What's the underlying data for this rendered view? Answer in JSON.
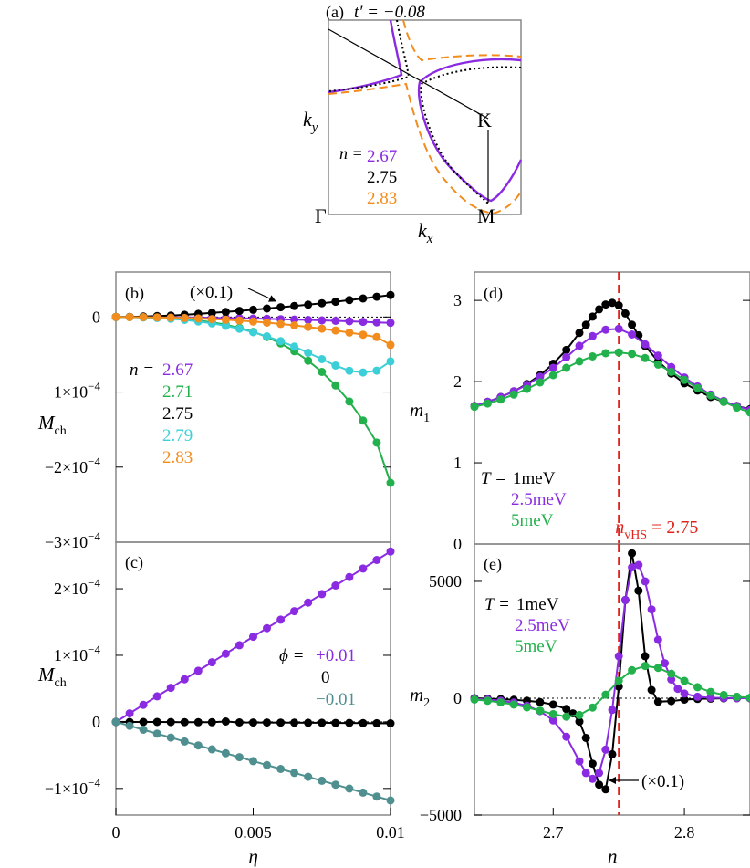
{
  "colors": {
    "purple": "#8a2be2",
    "green": "#22b14c",
    "black": "#000000",
    "cyan": "#3ccfd8",
    "orange": "#f28c1c",
    "teal": "#4f8f90",
    "red": "#e0241b",
    "frame": "#888888"
  },
  "chart_data": [
    {
      "id": "a",
      "type": "diagram",
      "panel_label": "(a)",
      "title": "t′ = −0.08",
      "xlabel": "k",
      "xlabel_sub": "x",
      "ylabel": "k",
      "ylabel_sub": "y",
      "points": {
        "gamma": "Γ",
        "K": "K",
        "M": "M"
      },
      "legend_prefix": "n =",
      "series": [
        {
          "name": "2.67",
          "color": "purple",
          "style": "solid"
        },
        {
          "name": "2.75",
          "color": "black",
          "style": "dotted"
        },
        {
          "name": "2.83",
          "color": "orange",
          "style": "dashed"
        }
      ]
    },
    {
      "id": "b",
      "type": "line",
      "panel_label": "(b)",
      "ylabel": "M",
      "ylabel_sub": "ch",
      "xlim": [
        0,
        0.01
      ],
      "ylim": [
        -0.0003,
        6e-05
      ],
      "yticks": [
        {
          "v": 0,
          "label": "0"
        },
        {
          "v": -0.0001,
          "label": "−1×10",
          "sup": "−4"
        },
        {
          "v": -0.0002,
          "label": "−2×10",
          "sup": "−4"
        },
        {
          "v": -0.0003,
          "label": "−3×10",
          "sup": "−4"
        }
      ],
      "annotation": "(×0.1)",
      "legend_prefix": "n =",
      "x": [
        0,
        0.0005,
        0.001,
        0.0015,
        0.002,
        0.0025,
        0.003,
        0.0035,
        0.004,
        0.0045,
        0.005,
        0.0055,
        0.006,
        0.0065,
        0.007,
        0.0075,
        0.008,
        0.0085,
        0.009,
        0.0095,
        0.01
      ],
      "series": [
        {
          "name": "2.67",
          "color": "purple",
          "values": [
            0,
            0,
            -1e-07,
            -2e-07,
            -3e-07,
            -5e-07,
            -7e-07,
            -1e-06,
            -1.3e-06,
            -1.6e-06,
            -2e-06,
            -2.4e-06,
            -2.9e-06,
            -3.4e-06,
            -3.9e-06,
            -4.5e-06,
            -5.1e-06,
            -5.7e-06,
            -6.4e-06,
            -7.1e-06,
            -7.8e-06
          ]
        },
        {
          "name": "2.71",
          "color": "green",
          "values": [
            0,
            -1e-07,
            -4e-07,
            -9e-07,
            -1.7e-06,
            -2.9e-06,
            -4.6e-06,
            -7e-06,
            -1.02e-05,
            -1.44e-05,
            -1.98e-05,
            -2.66e-05,
            -3.52e-05,
            -4.56e-05,
            -5.82e-05,
            -7.32e-05,
            -9.12e-05,
            -0.0001126,
            -0.000138,
            -0.0001673,
            -0.000221
          ]
        },
        {
          "name": "2.75",
          "color": "black",
          "values": [
            0,
            2e-07,
            6e-07,
            1.2e-06,
            2e-06,
            3e-06,
            4.2e-06,
            5.5e-06,
            6.8e-06,
            8.2e-06,
            9.7e-06,
            1.13e-05,
            1.3e-05,
            1.47e-05,
            1.65e-05,
            1.84e-05,
            2.04e-05,
            2.25e-05,
            2.47e-05,
            2.7e-05,
            2.93e-05
          ]
        },
        {
          "name": "2.79",
          "color": "cyan",
          "values": [
            0,
            -2e-07,
            -6e-07,
            -1.3e-06,
            -2.4e-06,
            -3.9e-06,
            -5.9e-06,
            -8.5e-06,
            -1.17e-05,
            -1.56e-05,
            -2.03e-05,
            -2.58e-05,
            -3.22e-05,
            -3.95e-05,
            -4.76e-05,
            -5.62e-05,
            -6.47e-05,
            -7.16e-05,
            -7.39e-05,
            -7.15e-05,
            -5.91e-05
          ]
        },
        {
          "name": "2.83",
          "color": "orange",
          "values": [
            0,
            -1e-07,
            -2e-07,
            -5e-07,
            -8e-07,
            -1.3e-06,
            -1.9e-06,
            -2.7e-06,
            -3.6e-06,
            -4.7e-06,
            -6e-06,
            -7.5e-06,
            -9.2e-06,
            -1.11e-05,
            -1.32e-05,
            -1.55e-05,
            -1.8e-05,
            -2.07e-05,
            -2.36e-05,
            -2.67e-05,
            -3.72e-05
          ]
        }
      ]
    },
    {
      "id": "c",
      "type": "line",
      "panel_label": "(c)",
      "xlabel": "η",
      "ylabel": "M",
      "ylabel_sub": "ch",
      "xlim": [
        0,
        0.01
      ],
      "ylim": [
        -0.00014,
        0.00027
      ],
      "xticks": [
        {
          "v": 0,
          "label": "0"
        },
        {
          "v": 0.005,
          "label": "0.005"
        },
        {
          "v": 0.01,
          "label": "0.01"
        }
      ],
      "yticks": [
        {
          "v": 0.0002,
          "label": "2×10",
          "sup": "−4"
        },
        {
          "v": 0.0001,
          "label": "1×10",
          "sup": "−4"
        },
        {
          "v": 0,
          "label": "0"
        },
        {
          "v": -0.0001,
          "label": "−1×10",
          "sup": "−4"
        }
      ],
      "legend_prefix": "ϕ =",
      "x": [
        0,
        0.0005,
        0.001,
        0.0015,
        0.002,
        0.0025,
        0.003,
        0.0035,
        0.004,
        0.0045,
        0.005,
        0.0055,
        0.006,
        0.0065,
        0.007,
        0.0075,
        0.008,
        0.0085,
        0.009,
        0.0095,
        0.01
      ],
      "series": [
        {
          "name": "+0.01",
          "color": "purple",
          "values": [
            0,
            1.28e-05,
            2.56e-05,
            3.84e-05,
            5.12e-05,
            6.4e-05,
            7.68e-05,
            8.96e-05,
            0.0001024,
            0.0001152,
            0.000128,
            0.0001408,
            0.0001536,
            0.0001664,
            0.0001792,
            0.000192,
            0.0002048,
            0.0002176,
            0.0002304,
            0.0002432,
            0.000256
          ]
        },
        {
          "name": "0",
          "color": "black",
          "values": [
            0,
            -1e-07,
            -2e-07,
            -2e-07,
            -3e-07,
            -4e-07,
            -5e-07,
            -6e-07,
            5e-07,
            -8e-07,
            -9e-07,
            -1e-06,
            -1.1e-06,
            -1.2e-06,
            -1.3e-06,
            -1.4e-06,
            -1.6e-06,
            -1.7e-06,
            -1.9e-06,
            -2e-06,
            -2.2e-06
          ]
        },
        {
          "name": "−0.01",
          "color": "teal",
          "values": [
            0,
            -5.9e-06,
            -1.18e-05,
            -1.77e-05,
            -2.36e-05,
            -2.95e-05,
            -3.54e-05,
            -4.13e-05,
            -4.72e-05,
            -5.31e-05,
            -5.9e-05,
            -6.49e-05,
            -7.08e-05,
            -7.67e-05,
            -8.26e-05,
            -8.85e-05,
            -9.44e-05,
            -0.0001003,
            -0.0001062,
            -0.0001121,
            -0.000118
          ]
        }
      ]
    },
    {
      "id": "d",
      "type": "line",
      "panel_label": "(d)",
      "ylabel": "m",
      "ylabel_sub": "1",
      "xlim": [
        2.64,
        2.85
      ],
      "ylim": [
        0,
        3.35
      ],
      "yticks": [
        {
          "v": 0,
          "label": "0"
        },
        {
          "v": 1,
          "label": "1"
        },
        {
          "v": 2,
          "label": "2"
        },
        {
          "v": 3,
          "label": "3"
        }
      ],
      "vline": {
        "x": 2.75,
        "label": "n",
        "label_sub": "vHS",
        "label_tail": " = 2.75"
      },
      "legend_prefix": "T =",
      "series": [
        {
          "name": "1meV",
          "color": "black",
          "x": [
            2.64,
            2.65,
            2.66,
            2.67,
            2.68,
            2.69,
            2.7,
            2.71,
            2.72,
            2.725,
            2.73,
            2.735,
            2.74,
            2.745,
            2.75,
            2.755,
            2.76,
            2.765,
            2.77,
            2.78,
            2.79,
            2.8,
            2.81,
            2.82,
            2.83,
            2.84,
            2.85
          ],
          "values": [
            1.7,
            1.75,
            1.81,
            1.88,
            1.97,
            2.08,
            2.22,
            2.39,
            2.6,
            2.7,
            2.8,
            2.89,
            2.95,
            2.97,
            2.94,
            2.84,
            2.7,
            2.57,
            2.44,
            2.25,
            2.1,
            1.98,
            1.89,
            1.81,
            1.75,
            1.7,
            1.66
          ]
        },
        {
          "name": "2.5meV",
          "color": "purple",
          "x": [
            2.64,
            2.65,
            2.66,
            2.67,
            2.68,
            2.69,
            2.7,
            2.71,
            2.72,
            2.73,
            2.74,
            2.75,
            2.76,
            2.77,
            2.78,
            2.79,
            2.8,
            2.81,
            2.82,
            2.83,
            2.84,
            2.85
          ],
          "values": [
            1.7,
            1.75,
            1.81,
            1.88,
            1.96,
            2.06,
            2.17,
            2.3,
            2.44,
            2.56,
            2.64,
            2.65,
            2.58,
            2.46,
            2.32,
            2.18,
            2.05,
            1.94,
            1.84,
            1.76,
            1.7,
            1.65
          ]
        },
        {
          "name": "5meV",
          "color": "green",
          "x": [
            2.64,
            2.65,
            2.66,
            2.67,
            2.68,
            2.69,
            2.7,
            2.71,
            2.72,
            2.73,
            2.74,
            2.75,
            2.76,
            2.77,
            2.78,
            2.79,
            2.8,
            2.81,
            2.82,
            2.83,
            2.84,
            2.85
          ],
          "values": [
            1.69,
            1.73,
            1.78,
            1.84,
            1.91,
            1.99,
            2.08,
            2.17,
            2.25,
            2.31,
            2.35,
            2.36,
            2.34,
            2.29,
            2.21,
            2.12,
            2.02,
            1.92,
            1.83,
            1.75,
            1.68,
            1.62
          ]
        }
      ]
    },
    {
      "id": "e",
      "type": "line",
      "panel_label": "(e)",
      "xlabel": "n",
      "ylabel": "m",
      "ylabel_sub": "2",
      "xlim": [
        2.64,
        2.85
      ],
      "ylim": [
        -5000,
        6600
      ],
      "xticks": [
        {
          "v": 2.7,
          "label": "2.7"
        },
        {
          "v": 2.8,
          "label": "2.8"
        }
      ],
      "yticks": [
        {
          "v": -5000,
          "label": "−5000"
        },
        {
          "v": 0,
          "label": "0"
        },
        {
          "v": 5000,
          "label": "5000"
        }
      ],
      "vline": {
        "x": 2.75
      },
      "annotation": "(×0.1)",
      "legend_prefix": "T =",
      "series": [
        {
          "name": "1meV",
          "color": "black",
          "x": [
            2.64,
            2.65,
            2.66,
            2.67,
            2.68,
            2.69,
            2.7,
            2.71,
            2.715,
            2.72,
            2.725,
            2.73,
            2.735,
            2.74,
            2.745,
            2.75,
            2.755,
            2.76,
            2.765,
            2.77,
            2.775,
            2.78,
            2.79,
            2.8,
            2.81,
            2.82,
            2.83,
            2.84,
            2.85
          ],
          "values": [
            0,
            -20,
            -40,
            -70,
            -110,
            -170,
            -270,
            -460,
            -650,
            -1000,
            -1700,
            -2800,
            -3700,
            -3900,
            -2400,
            500,
            4200,
            6200,
            4600,
            1800,
            350,
            -150,
            -120,
            -60,
            -30,
            -15,
            -5,
            0,
            0
          ]
        },
        {
          "name": "2.5meV",
          "color": "purple",
          "x": [
            2.64,
            2.65,
            2.66,
            2.67,
            2.68,
            2.69,
            2.7,
            2.71,
            2.72,
            2.725,
            2.73,
            2.735,
            2.74,
            2.745,
            2.75,
            2.755,
            2.76,
            2.765,
            2.77,
            2.775,
            2.78,
            2.785,
            2.79,
            2.795,
            2.8,
            2.81,
            2.82,
            2.83,
            2.84,
            2.85
          ],
          "values": [
            -30,
            -60,
            -110,
            -190,
            -320,
            -550,
            -950,
            -1650,
            -2700,
            -3200,
            -3450,
            -3200,
            -2200,
            -500,
            1800,
            4200,
            5600,
            5700,
            5000,
            3800,
            2500,
            1500,
            800,
            400,
            200,
            60,
            20,
            10,
            0,
            0
          ]
        },
        {
          "name": "5meV",
          "color": "green",
          "x": [
            2.64,
            2.65,
            2.66,
            2.67,
            2.68,
            2.69,
            2.7,
            2.71,
            2.72,
            2.73,
            2.74,
            2.75,
            2.76,
            2.77,
            2.78,
            2.79,
            2.8,
            2.81,
            2.82,
            2.83,
            2.84,
            2.85
          ],
          "values": [
            -60,
            -110,
            -180,
            -270,
            -390,
            -530,
            -680,
            -790,
            -720,
            -400,
            150,
            750,
            1200,
            1380,
            1300,
            1050,
            740,
            470,
            270,
            140,
            60,
            20
          ]
        }
      ]
    }
  ]
}
